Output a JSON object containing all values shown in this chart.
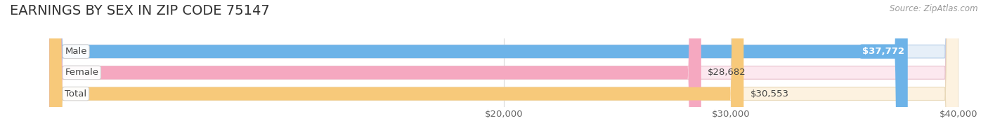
{
  "title": "EARNINGS BY SEX IN ZIP CODE 75147",
  "source": "Source: ZipAtlas.com",
  "categories": [
    "Male",
    "Female",
    "Total"
  ],
  "values": [
    37772,
    28682,
    30553
  ],
  "bar_colors": [
    "#6db3e8",
    "#f5a8c0",
    "#f7c97a"
  ],
  "bar_bg_colors": [
    "#e6eff8",
    "#fce8ef",
    "#fdf2e0"
  ],
  "bar_edge_colors": [
    "#b8d0e8",
    "#e8c0cc",
    "#e8d8b8"
  ],
  "value_labels": [
    "$37,772",
    "$28,682",
    "$30,553"
  ],
  "male_label_inside": true,
  "xmin": 0,
  "xmax": 40000,
  "xticks": [
    20000,
    30000,
    40000
  ],
  "xtick_labels": [
    "$20,000",
    "$30,000",
    "$40,000"
  ],
  "title_fontsize": 14,
  "tick_fontsize": 9.5,
  "bar_label_fontsize": 9.5,
  "value_label_fontsize": 9.5,
  "background_color": "#ffffff",
  "bar_height": 0.62,
  "grid_color": "#d8d8d8",
  "text_color": "#444444",
  "source_color": "#999999"
}
